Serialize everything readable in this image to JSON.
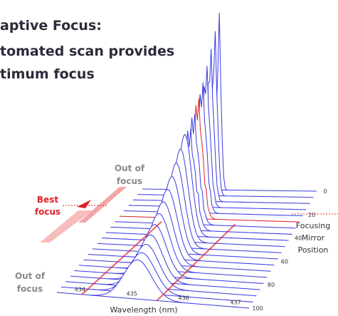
{
  "header": {
    "title_lines": [
      "aptive Focus:",
      "tomated scan provides",
      "timum focus"
    ]
  },
  "annotations": {
    "top": [
      "Out of",
      "focus"
    ],
    "best": [
      "Best",
      "focus"
    ],
    "bottom": [
      "Out of",
      "focus"
    ]
  },
  "x_axis": {
    "label": "Wavelength (nm)",
    "ticks": [
      "434",
      "435",
      "436",
      "437"
    ]
  },
  "depth_axis": {
    "label_lines": [
      "Focusing",
      "Mirror",
      "Position"
    ],
    "ticks": [
      "0",
      "20",
      "40",
      "60",
      "80",
      "100"
    ]
  }
}
